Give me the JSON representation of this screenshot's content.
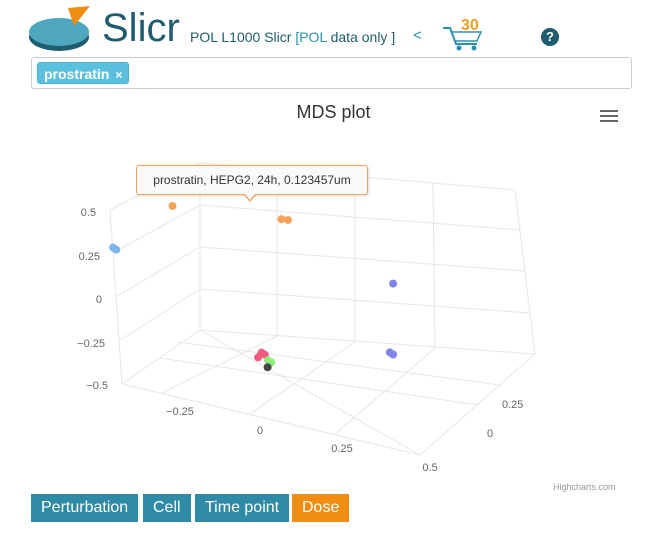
{
  "header": {
    "brand": "Slicr",
    "subtitle_main": "POL L1000 Slicr",
    "subtitle_open": "[",
    "subtitle_pol": "POL",
    "subtitle_rest": "data only ]",
    "back_symbol": "<",
    "cart_count": "30",
    "help_symbol": "?"
  },
  "search": {
    "tags": [
      {
        "label": "prostratin",
        "remove_symbol": "×"
      }
    ]
  },
  "chart": {
    "title": "MDS plot",
    "credits": "Highcharts.com",
    "tooltip": "prostratin, HEPG2, 24h, 0.123457um"
  },
  "chart_data": {
    "type": "scatter",
    "title": "MDS plot",
    "three_d": true,
    "y_ticks": [
      "0.5",
      "0.25",
      "0",
      "−0.25",
      "−0.5"
    ],
    "x_ticks": [
      "−0.25",
      "0",
      "0.25",
      "0.5"
    ],
    "z_ticks": [
      "0.25",
      "0"
    ],
    "ylim": [
      -0.5,
      0.5
    ],
    "series": [
      {
        "color": "#f7a35c",
        "points": [
          [
            -0.05,
            0.5,
            0.3
          ],
          [
            0.28,
            0.5,
            0.3
          ],
          [
            0.3,
            0.5,
            0.3
          ]
        ]
      },
      {
        "color": "#7cb5ec",
        "points": [
          [
            -0.45,
            0.2,
            0.0
          ],
          [
            -0.44,
            0.19,
            0.0
          ]
        ]
      },
      {
        "color": "#8085e9",
        "points": [
          [
            0.55,
            0.2,
            0.2
          ],
          [
            0.55,
            -0.2,
            0.2
          ],
          [
            0.56,
            -0.21,
            0.2
          ]
        ]
      },
      {
        "color": "#f15c80",
        "points": [
          [
            0.05,
            -0.3,
            0.05
          ],
          [
            0.06,
            -0.31,
            0.05
          ],
          [
            0.04,
            -0.33,
            0.05
          ]
        ]
      },
      {
        "color": "#90ed7d",
        "points": [
          [
            0.07,
            -0.34,
            0.05
          ],
          [
            0.08,
            -0.35,
            0.05
          ]
        ]
      },
      {
        "color": "#434348",
        "points": [
          [
            0.07,
            -0.38,
            0.05
          ]
        ]
      }
    ]
  },
  "colorby": {
    "buttons": [
      {
        "label": "Perturbation",
        "active": false
      },
      {
        "label": "Cell",
        "active": false
      },
      {
        "label": "Time point",
        "active": false
      },
      {
        "label": "Dose",
        "active": true
      }
    ]
  }
}
